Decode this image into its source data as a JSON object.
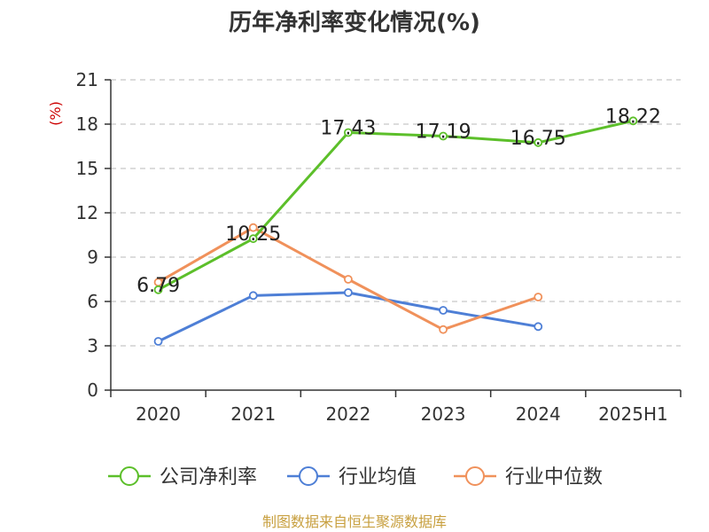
{
  "chart_data": {
    "type": "line",
    "title": "历年净利率变化情况(%)",
    "ylabel": "(%)",
    "categories": [
      "2020",
      "2021",
      "2022",
      "2023",
      "2024",
      "2025H1"
    ],
    "ylim": [
      0,
      21
    ],
    "yticks": [
      0,
      3,
      6,
      9,
      12,
      15,
      18,
      21
    ],
    "grid": true,
    "legend_position": "bottom",
    "series": [
      {
        "name": "公司净利率",
        "color": "#5cbf2a",
        "values": [
          6.79,
          10.25,
          17.43,
          17.19,
          16.75,
          18.22
        ],
        "labels": [
          "6.79",
          "10.25",
          "17.43",
          "17.19",
          "16.75",
          "18.22"
        ]
      },
      {
        "name": "行业均值",
        "color": "#4e7fd6",
        "values": [
          3.3,
          6.4,
          6.6,
          5.4,
          4.3,
          null
        ]
      },
      {
        "name": "行业中位数",
        "color": "#f0915b",
        "values": [
          7.3,
          11.0,
          7.5,
          4.1,
          6.3,
          null
        ]
      }
    ]
  },
  "source_text": "制图数据来自恒生聚源数据库"
}
